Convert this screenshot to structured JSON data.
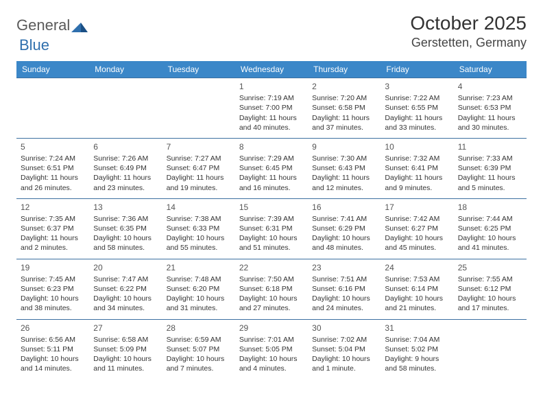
{
  "logo": {
    "text1": "General",
    "text2": "Blue"
  },
  "title": "October 2025",
  "location": "Gerstetten, Germany",
  "colors": {
    "header_bg": "#3b87c8",
    "header_text": "#ffffff",
    "cell_border": "#3b6fa0",
    "page_bg": "#ffffff",
    "body_text": "#333333",
    "logo_gray": "#5a5a5a",
    "logo_blue": "#2f6fad"
  },
  "typography": {
    "month_title_size": 28,
    "location_size": 18,
    "dayhead_size": 12,
    "cell_size": 10.5,
    "daynum_size": 12
  },
  "day_headers": [
    "Sunday",
    "Monday",
    "Tuesday",
    "Wednesday",
    "Thursday",
    "Friday",
    "Saturday"
  ],
  "weeks": [
    [
      {
        "n": "",
        "sr": "",
        "ss": "",
        "dl": ""
      },
      {
        "n": "",
        "sr": "",
        "ss": "",
        "dl": ""
      },
      {
        "n": "",
        "sr": "",
        "ss": "",
        "dl": ""
      },
      {
        "n": "1",
        "sr": "Sunrise: 7:19 AM",
        "ss": "Sunset: 7:00 PM",
        "dl": "Daylight: 11 hours and 40 minutes."
      },
      {
        "n": "2",
        "sr": "Sunrise: 7:20 AM",
        "ss": "Sunset: 6:58 PM",
        "dl": "Daylight: 11 hours and 37 minutes."
      },
      {
        "n": "3",
        "sr": "Sunrise: 7:22 AM",
        "ss": "Sunset: 6:55 PM",
        "dl": "Daylight: 11 hours and 33 minutes."
      },
      {
        "n": "4",
        "sr": "Sunrise: 7:23 AM",
        "ss": "Sunset: 6:53 PM",
        "dl": "Daylight: 11 hours and 30 minutes."
      }
    ],
    [
      {
        "n": "5",
        "sr": "Sunrise: 7:24 AM",
        "ss": "Sunset: 6:51 PM",
        "dl": "Daylight: 11 hours and 26 minutes."
      },
      {
        "n": "6",
        "sr": "Sunrise: 7:26 AM",
        "ss": "Sunset: 6:49 PM",
        "dl": "Daylight: 11 hours and 23 minutes."
      },
      {
        "n": "7",
        "sr": "Sunrise: 7:27 AM",
        "ss": "Sunset: 6:47 PM",
        "dl": "Daylight: 11 hours and 19 minutes."
      },
      {
        "n": "8",
        "sr": "Sunrise: 7:29 AM",
        "ss": "Sunset: 6:45 PM",
        "dl": "Daylight: 11 hours and 16 minutes."
      },
      {
        "n": "9",
        "sr": "Sunrise: 7:30 AM",
        "ss": "Sunset: 6:43 PM",
        "dl": "Daylight: 11 hours and 12 minutes."
      },
      {
        "n": "10",
        "sr": "Sunrise: 7:32 AM",
        "ss": "Sunset: 6:41 PM",
        "dl": "Daylight: 11 hours and 9 minutes."
      },
      {
        "n": "11",
        "sr": "Sunrise: 7:33 AM",
        "ss": "Sunset: 6:39 PM",
        "dl": "Daylight: 11 hours and 5 minutes."
      }
    ],
    [
      {
        "n": "12",
        "sr": "Sunrise: 7:35 AM",
        "ss": "Sunset: 6:37 PM",
        "dl": "Daylight: 11 hours and 2 minutes."
      },
      {
        "n": "13",
        "sr": "Sunrise: 7:36 AM",
        "ss": "Sunset: 6:35 PM",
        "dl": "Daylight: 10 hours and 58 minutes."
      },
      {
        "n": "14",
        "sr": "Sunrise: 7:38 AM",
        "ss": "Sunset: 6:33 PM",
        "dl": "Daylight: 10 hours and 55 minutes."
      },
      {
        "n": "15",
        "sr": "Sunrise: 7:39 AM",
        "ss": "Sunset: 6:31 PM",
        "dl": "Daylight: 10 hours and 51 minutes."
      },
      {
        "n": "16",
        "sr": "Sunrise: 7:41 AM",
        "ss": "Sunset: 6:29 PM",
        "dl": "Daylight: 10 hours and 48 minutes."
      },
      {
        "n": "17",
        "sr": "Sunrise: 7:42 AM",
        "ss": "Sunset: 6:27 PM",
        "dl": "Daylight: 10 hours and 45 minutes."
      },
      {
        "n": "18",
        "sr": "Sunrise: 7:44 AM",
        "ss": "Sunset: 6:25 PM",
        "dl": "Daylight: 10 hours and 41 minutes."
      }
    ],
    [
      {
        "n": "19",
        "sr": "Sunrise: 7:45 AM",
        "ss": "Sunset: 6:23 PM",
        "dl": "Daylight: 10 hours and 38 minutes."
      },
      {
        "n": "20",
        "sr": "Sunrise: 7:47 AM",
        "ss": "Sunset: 6:22 PM",
        "dl": "Daylight: 10 hours and 34 minutes."
      },
      {
        "n": "21",
        "sr": "Sunrise: 7:48 AM",
        "ss": "Sunset: 6:20 PM",
        "dl": "Daylight: 10 hours and 31 minutes."
      },
      {
        "n": "22",
        "sr": "Sunrise: 7:50 AM",
        "ss": "Sunset: 6:18 PM",
        "dl": "Daylight: 10 hours and 27 minutes."
      },
      {
        "n": "23",
        "sr": "Sunrise: 7:51 AM",
        "ss": "Sunset: 6:16 PM",
        "dl": "Daylight: 10 hours and 24 minutes."
      },
      {
        "n": "24",
        "sr": "Sunrise: 7:53 AM",
        "ss": "Sunset: 6:14 PM",
        "dl": "Daylight: 10 hours and 21 minutes."
      },
      {
        "n": "25",
        "sr": "Sunrise: 7:55 AM",
        "ss": "Sunset: 6:12 PM",
        "dl": "Daylight: 10 hours and 17 minutes."
      }
    ],
    [
      {
        "n": "26",
        "sr": "Sunrise: 6:56 AM",
        "ss": "Sunset: 5:11 PM",
        "dl": "Daylight: 10 hours and 14 minutes."
      },
      {
        "n": "27",
        "sr": "Sunrise: 6:58 AM",
        "ss": "Sunset: 5:09 PM",
        "dl": "Daylight: 10 hours and 11 minutes."
      },
      {
        "n": "28",
        "sr": "Sunrise: 6:59 AM",
        "ss": "Sunset: 5:07 PM",
        "dl": "Daylight: 10 hours and 7 minutes."
      },
      {
        "n": "29",
        "sr": "Sunrise: 7:01 AM",
        "ss": "Sunset: 5:05 PM",
        "dl": "Daylight: 10 hours and 4 minutes."
      },
      {
        "n": "30",
        "sr": "Sunrise: 7:02 AM",
        "ss": "Sunset: 5:04 PM",
        "dl": "Daylight: 10 hours and 1 minute."
      },
      {
        "n": "31",
        "sr": "Sunrise: 7:04 AM",
        "ss": "Sunset: 5:02 PM",
        "dl": "Daylight: 9 hours and 58 minutes."
      },
      {
        "n": "",
        "sr": "",
        "ss": "",
        "dl": ""
      }
    ]
  ]
}
